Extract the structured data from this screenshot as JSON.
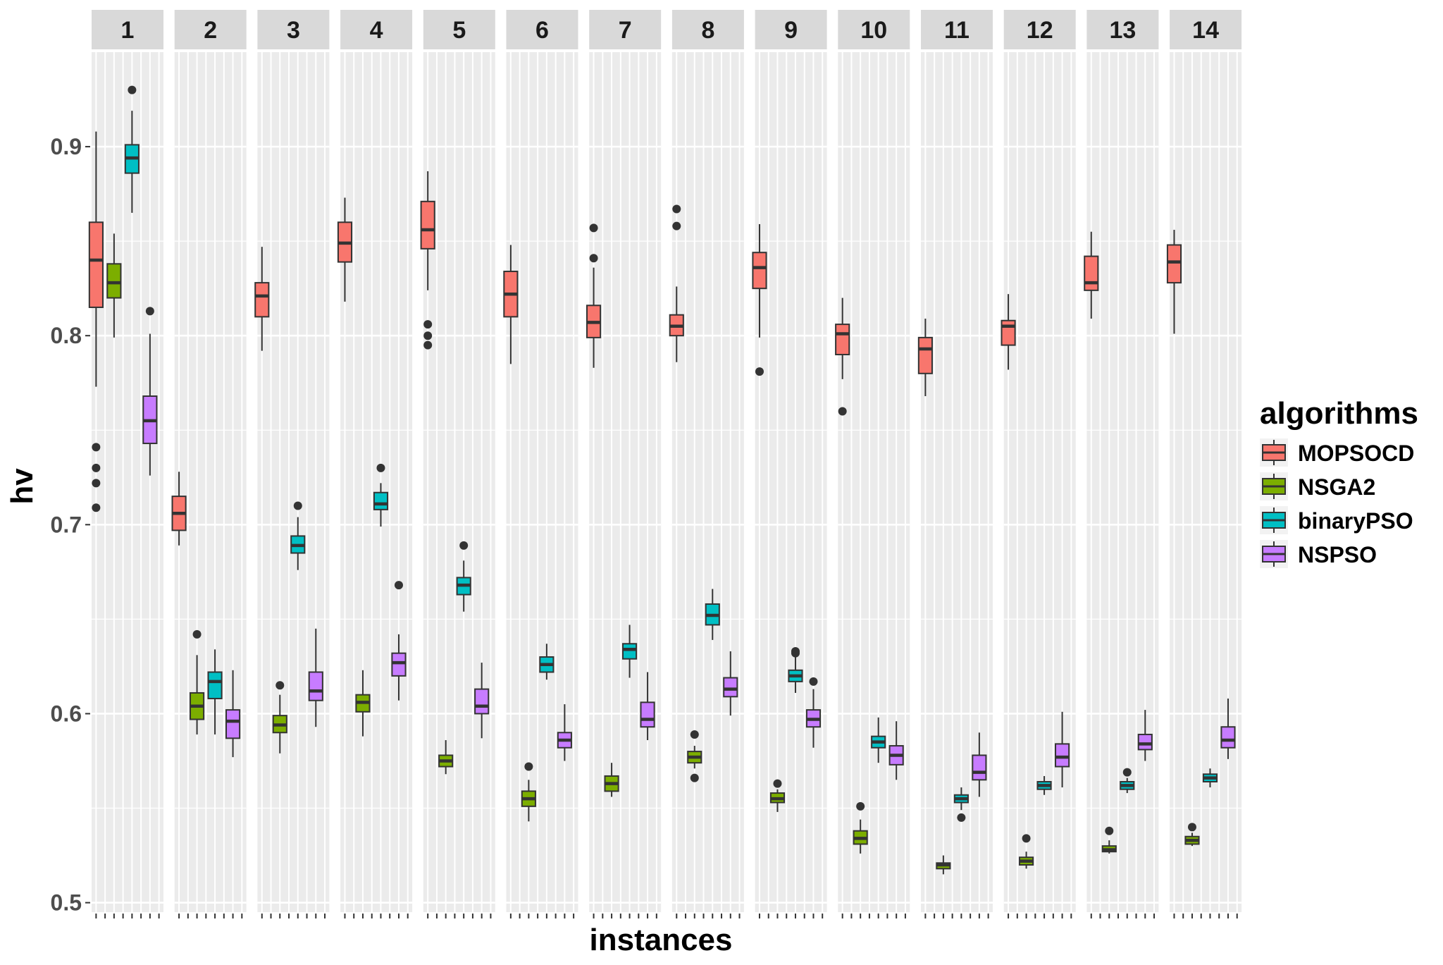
{
  "chart_data": {
    "type": "boxplot",
    "facet_type": "columns",
    "xlabel": "instances",
    "ylabel": "hv",
    "ylim": [
      0.495,
      0.95
    ],
    "yticks": [
      0.5,
      0.6,
      0.7,
      0.8,
      0.9
    ],
    "ytick_labels": [
      "0.5",
      "0.6",
      "0.7",
      "0.8",
      "0.9"
    ],
    "grid": true,
    "legend": {
      "title": "algorithms",
      "position": "right",
      "items": [
        {
          "name": "MOPSOCD",
          "color": "#F8766D"
        },
        {
          "name": "NSGA2",
          "color": "#7CAE00"
        },
        {
          "name": "binaryPSO",
          "color": "#00BFC4"
        },
        {
          "name": "NSPSO",
          "color": "#C77CFF"
        }
      ]
    },
    "series_order": [
      "MOPSOCD",
      "NSGA2",
      "binaryPSO",
      "NSPSO"
    ],
    "panels": [
      {
        "label": "1",
        "boxes": [
          {
            "min": 0.773,
            "q1": 0.815,
            "median": 0.84,
            "q3": 0.86,
            "max": 0.908,
            "outliers": [
              0.741,
              0.73,
              0.722,
              0.709
            ]
          },
          {
            "min": 0.799,
            "q1": 0.82,
            "median": 0.828,
            "q3": 0.838,
            "max": 0.854,
            "outliers": []
          },
          {
            "min": 0.865,
            "q1": 0.886,
            "median": 0.894,
            "q3": 0.901,
            "max": 0.919,
            "outliers": [
              0.93
            ]
          },
          {
            "min": 0.726,
            "q1": 0.743,
            "median": 0.755,
            "q3": 0.768,
            "max": 0.801,
            "outliers": [
              0.813
            ]
          }
        ]
      },
      {
        "label": "2",
        "boxes": [
          {
            "min": 0.689,
            "q1": 0.697,
            "median": 0.706,
            "q3": 0.715,
            "max": 0.728,
            "outliers": []
          },
          {
            "min": 0.589,
            "q1": 0.597,
            "median": 0.604,
            "q3": 0.611,
            "max": 0.631,
            "outliers": [
              0.642
            ]
          },
          {
            "min": 0.589,
            "q1": 0.608,
            "median": 0.617,
            "q3": 0.622,
            "max": 0.634,
            "outliers": []
          },
          {
            "min": 0.577,
            "q1": 0.587,
            "median": 0.596,
            "q3": 0.602,
            "max": 0.623,
            "outliers": []
          }
        ]
      },
      {
        "label": "3",
        "boxes": [
          {
            "min": 0.792,
            "q1": 0.81,
            "median": 0.821,
            "q3": 0.828,
            "max": 0.847,
            "outliers": []
          },
          {
            "min": 0.579,
            "q1": 0.59,
            "median": 0.594,
            "q3": 0.599,
            "max": 0.61,
            "outliers": [
              0.615
            ]
          },
          {
            "min": 0.676,
            "q1": 0.685,
            "median": 0.689,
            "q3": 0.694,
            "max": 0.704,
            "outliers": [
              0.71
            ]
          },
          {
            "min": 0.593,
            "q1": 0.607,
            "median": 0.612,
            "q3": 0.622,
            "max": 0.645,
            "outliers": []
          }
        ]
      },
      {
        "label": "4",
        "boxes": [
          {
            "min": 0.818,
            "q1": 0.839,
            "median": 0.849,
            "q3": 0.86,
            "max": 0.873,
            "outliers": []
          },
          {
            "min": 0.588,
            "q1": 0.601,
            "median": 0.606,
            "q3": 0.61,
            "max": 0.623,
            "outliers": []
          },
          {
            "min": 0.699,
            "q1": 0.708,
            "median": 0.711,
            "q3": 0.717,
            "max": 0.722,
            "outliers": [
              0.73
            ]
          },
          {
            "min": 0.607,
            "q1": 0.62,
            "median": 0.627,
            "q3": 0.632,
            "max": 0.642,
            "outliers": [
              0.668
            ]
          }
        ]
      },
      {
        "label": "5",
        "boxes": [
          {
            "min": 0.824,
            "q1": 0.846,
            "median": 0.856,
            "q3": 0.871,
            "max": 0.887,
            "outliers": [
              0.806,
              0.8,
              0.795
            ]
          },
          {
            "min": 0.568,
            "q1": 0.572,
            "median": 0.575,
            "q3": 0.578,
            "max": 0.586,
            "outliers": []
          },
          {
            "min": 0.654,
            "q1": 0.663,
            "median": 0.668,
            "q3": 0.672,
            "max": 0.681,
            "outliers": [
              0.689
            ]
          },
          {
            "min": 0.587,
            "q1": 0.6,
            "median": 0.604,
            "q3": 0.613,
            "max": 0.627,
            "outliers": []
          }
        ]
      },
      {
        "label": "6",
        "boxes": [
          {
            "min": 0.785,
            "q1": 0.81,
            "median": 0.822,
            "q3": 0.834,
            "max": 0.848,
            "outliers": []
          },
          {
            "min": 0.543,
            "q1": 0.551,
            "median": 0.555,
            "q3": 0.559,
            "max": 0.565,
            "outliers": [
              0.572
            ]
          },
          {
            "min": 0.618,
            "q1": 0.622,
            "median": 0.626,
            "q3": 0.63,
            "max": 0.637,
            "outliers": []
          },
          {
            "min": 0.575,
            "q1": 0.582,
            "median": 0.586,
            "q3": 0.59,
            "max": 0.605,
            "outliers": []
          }
        ]
      },
      {
        "label": "7",
        "boxes": [
          {
            "min": 0.783,
            "q1": 0.799,
            "median": 0.807,
            "q3": 0.816,
            "max": 0.836,
            "outliers": [
              0.857,
              0.841
            ]
          },
          {
            "min": 0.556,
            "q1": 0.559,
            "median": 0.563,
            "q3": 0.567,
            "max": 0.574,
            "outliers": []
          },
          {
            "min": 0.619,
            "q1": 0.629,
            "median": 0.634,
            "q3": 0.637,
            "max": 0.647,
            "outliers": []
          },
          {
            "min": 0.586,
            "q1": 0.593,
            "median": 0.597,
            "q3": 0.606,
            "max": 0.622,
            "outliers": []
          }
        ]
      },
      {
        "label": "8",
        "boxes": [
          {
            "min": 0.786,
            "q1": 0.8,
            "median": 0.805,
            "q3": 0.811,
            "max": 0.826,
            "outliers": [
              0.867,
              0.858
            ]
          },
          {
            "min": 0.571,
            "q1": 0.574,
            "median": 0.577,
            "q3": 0.58,
            "max": 0.583,
            "outliers": [
              0.589,
              0.566
            ]
          },
          {
            "min": 0.639,
            "q1": 0.647,
            "median": 0.652,
            "q3": 0.658,
            "max": 0.666,
            "outliers": []
          },
          {
            "min": 0.599,
            "q1": 0.609,
            "median": 0.613,
            "q3": 0.619,
            "max": 0.633,
            "outliers": []
          }
        ]
      },
      {
        "label": "9",
        "boxes": [
          {
            "min": 0.799,
            "q1": 0.825,
            "median": 0.836,
            "q3": 0.844,
            "max": 0.859,
            "outliers": [
              0.781
            ]
          },
          {
            "min": 0.548,
            "q1": 0.553,
            "median": 0.555,
            "q3": 0.558,
            "max": 0.56,
            "outliers": [
              0.563
            ]
          },
          {
            "min": 0.611,
            "q1": 0.617,
            "median": 0.62,
            "q3": 0.623,
            "max": 0.63,
            "outliers": [
              0.633,
              0.632
            ]
          },
          {
            "min": 0.582,
            "q1": 0.593,
            "median": 0.597,
            "q3": 0.602,
            "max": 0.613,
            "outliers": [
              0.617
            ]
          }
        ]
      },
      {
        "label": "10",
        "boxes": [
          {
            "min": 0.777,
            "q1": 0.79,
            "median": 0.801,
            "q3": 0.806,
            "max": 0.82,
            "outliers": [
              0.76
            ]
          },
          {
            "min": 0.526,
            "q1": 0.531,
            "median": 0.534,
            "q3": 0.538,
            "max": 0.544,
            "outliers": [
              0.551
            ]
          },
          {
            "min": 0.574,
            "q1": 0.582,
            "median": 0.585,
            "q3": 0.588,
            "max": 0.598,
            "outliers": []
          },
          {
            "min": 0.565,
            "q1": 0.573,
            "median": 0.578,
            "q3": 0.583,
            "max": 0.596,
            "outliers": []
          }
        ]
      },
      {
        "label": "11",
        "boxes": [
          {
            "min": 0.768,
            "q1": 0.78,
            "median": 0.793,
            "q3": 0.799,
            "max": 0.809,
            "outliers": []
          },
          {
            "min": 0.515,
            "q1": 0.518,
            "median": 0.52,
            "q3": 0.521,
            "max": 0.525,
            "outliers": []
          },
          {
            "min": 0.549,
            "q1": 0.553,
            "median": 0.555,
            "q3": 0.557,
            "max": 0.561,
            "outliers": [
              0.545
            ]
          },
          {
            "min": 0.556,
            "q1": 0.565,
            "median": 0.569,
            "q3": 0.578,
            "max": 0.59,
            "outliers": []
          }
        ]
      },
      {
        "label": "12",
        "boxes": [
          {
            "min": 0.782,
            "q1": 0.795,
            "median": 0.805,
            "q3": 0.808,
            "max": 0.822,
            "outliers": []
          },
          {
            "min": 0.518,
            "q1": 0.52,
            "median": 0.522,
            "q3": 0.524,
            "max": 0.527,
            "outliers": [
              0.534
            ]
          },
          {
            "min": 0.557,
            "q1": 0.56,
            "median": 0.562,
            "q3": 0.564,
            "max": 0.567,
            "outliers": []
          },
          {
            "min": 0.561,
            "q1": 0.572,
            "median": 0.577,
            "q3": 0.584,
            "max": 0.601,
            "outliers": []
          }
        ]
      },
      {
        "label": "13",
        "boxes": [
          {
            "min": 0.809,
            "q1": 0.824,
            "median": 0.828,
            "q3": 0.842,
            "max": 0.855,
            "outliers": []
          },
          {
            "min": 0.526,
            "q1": 0.527,
            "median": 0.528,
            "q3": 0.53,
            "max": 0.533,
            "outliers": [
              0.538
            ]
          },
          {
            "min": 0.558,
            "q1": 0.56,
            "median": 0.562,
            "q3": 0.564,
            "max": 0.566,
            "outliers": [
              0.569
            ]
          },
          {
            "min": 0.575,
            "q1": 0.581,
            "median": 0.584,
            "q3": 0.589,
            "max": 0.602,
            "outliers": []
          }
        ]
      },
      {
        "label": "14",
        "boxes": [
          {
            "min": 0.801,
            "q1": 0.828,
            "median": 0.839,
            "q3": 0.848,
            "max": 0.856,
            "outliers": []
          },
          {
            "min": 0.53,
            "q1": 0.531,
            "median": 0.533,
            "q3": 0.535,
            "max": 0.537,
            "outliers": [
              0.54
            ]
          },
          {
            "min": 0.561,
            "q1": 0.564,
            "median": 0.566,
            "q3": 0.568,
            "max": 0.571,
            "outliers": []
          },
          {
            "min": 0.576,
            "q1": 0.582,
            "median": 0.586,
            "q3": 0.593,
            "max": 0.608,
            "outliers": []
          }
        ]
      }
    ]
  }
}
